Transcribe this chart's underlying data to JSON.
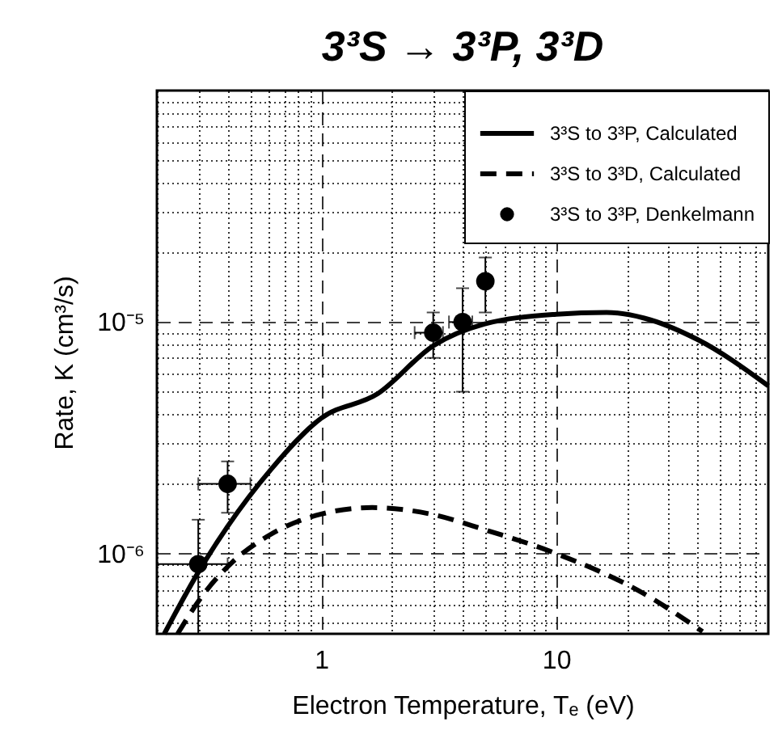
{
  "chart_data": {
    "type": "line",
    "title": "3³S → 3³P, 3³D",
    "xlabel": "Electron Temperature, Tₑ (eV)",
    "ylabel": "Rate, K (cm³/s)",
    "log": "xy",
    "grid": true,
    "legend": "top right",
    "xlim": [
      0.2,
      80
    ],
    "ylim": [
      4.5e-07,
      0.0001
    ],
    "xticks": [
      {
        "value": 0.2,
        "label": null
      },
      {
        "value": 0.3,
        "label": null
      },
      {
        "value": 0.4,
        "label": null
      },
      {
        "value": 0.5,
        "label": null
      },
      {
        "value": 0.6,
        "label": null
      },
      {
        "value": 0.7,
        "label": null
      },
      {
        "value": 0.8,
        "label": null
      },
      {
        "value": 0.9,
        "label": null
      },
      1,
      {
        "value": 2,
        "label": null
      },
      {
        "value": 3,
        "label": null
      },
      {
        "value": 4,
        "label": null
      },
      {
        "value": 5,
        "label": null
      },
      {
        "value": 6,
        "label": null
      },
      {
        "value": 7,
        "label": null
      },
      {
        "value": 8,
        "label": null
      },
      {
        "value": 9,
        "label": null
      },
      10,
      {
        "value": 20,
        "label": null
      },
      {
        "value": 30,
        "label": null
      },
      {
        "value": 40,
        "label": null
      },
      {
        "value": 50,
        "label": null
      },
      {
        "value": 60,
        "label": null
      },
      {
        "value": 70,
        "label": null
      }
    ],
    "yticks": [
      {
        "value": 5e-07,
        "label": null
      },
      {
        "value": 6e-07,
        "label": null
      },
      {
        "value": 7e-07,
        "label": null
      },
      {
        "value": 8e-07,
        "label": null
      },
      {
        "value": 9e-07,
        "label": null
      },
      {
        "value": 1e-06,
        "label": "10⁻⁶"
      },
      {
        "value": 2e-06,
        "label": null
      },
      {
        "value": 3e-06,
        "label": null
      },
      {
        "value": 4e-06,
        "label": null
      },
      {
        "value": 5e-06,
        "label": null
      },
      {
        "value": 6e-06,
        "label": null
      },
      {
        "value": 7e-06,
        "label": null
      },
      {
        "value": 8e-06,
        "label": null
      },
      {
        "value": 9e-06,
        "label": null
      },
      {
        "value": 1e-05,
        "label": "10⁻⁵"
      },
      {
        "value": 2e-05,
        "label": null
      },
      {
        "value": 3e-05,
        "label": null
      },
      {
        "value": 4e-05,
        "label": null
      },
      {
        "value": 5e-05,
        "label": null
      },
      {
        "value": 6e-05,
        "label": null
      },
      {
        "value": 7e-05,
        "label": null
      },
      {
        "value": 8e-05,
        "label": null
      },
      {
        "value": 9e-05,
        "label": null
      }
    ],
    "series": [
      {
        "name": "3³S to 3³P, Calculated",
        "type": "line",
        "line_style": "solid",
        "color": "#000000",
        "x": [
          0.215,
          0.3,
          0.4,
          0.61,
          1.0,
          1.74,
          3.0,
          4.94,
          10,
          16.4,
          23.7,
          40,
          80
        ],
        "values": [
          4.5e-07,
          8.3e-07,
          1.31e-06,
          2.3e-06,
          3.84e-06,
          4.9e-06,
          7.9e-06,
          9.8e-06,
          1.08e-05,
          1.1e-05,
          1.04e-05,
          8.4e-06,
          5.3e-06
        ]
      },
      {
        "name": "3³S to 3³D, Calculated",
        "type": "line",
        "line_style": "dashed",
        "color": "#000000",
        "x": [
          0.245,
          0.31,
          0.42,
          0.61,
          1.0,
          1.65,
          2.93,
          4.94,
          10,
          23.7,
          42
        ],
        "values": [
          4.5e-07,
          6.5e-07,
          9.2e-07,
          1.21e-06,
          1.48e-06,
          1.58e-06,
          1.48e-06,
          1.27e-06,
          1e-06,
          6.7e-07,
          4.6e-07
        ]
      },
      {
        "name": "3³S to 3³P, Denkelmann",
        "type": "scatter",
        "marker": "circle",
        "color": "#000000",
        "x": [
          0.3,
          0.4,
          3.0,
          4.0,
          5.0
        ],
        "values": [
          9e-07,
          2e-06,
          9e-06,
          1e-05,
          1.5e-05
        ],
        "errors": [
          [
            4.5e-07,
            1.4e-06
          ],
          [
            1.5e-06,
            2.5e-06
          ],
          [
            7e-06,
            1.1e-05
          ],
          [
            5e-06,
            1.4e-05
          ],
          [
            1.1e-05,
            1.9e-05
          ]
        ],
        "xerrors": [
          [
            0.2,
            0.4
          ],
          [
            0.3,
            0.5
          ],
          [
            2.5,
            3.3
          ],
          [
            3.5,
            4.4
          ],
          null
        ]
      }
    ]
  }
}
